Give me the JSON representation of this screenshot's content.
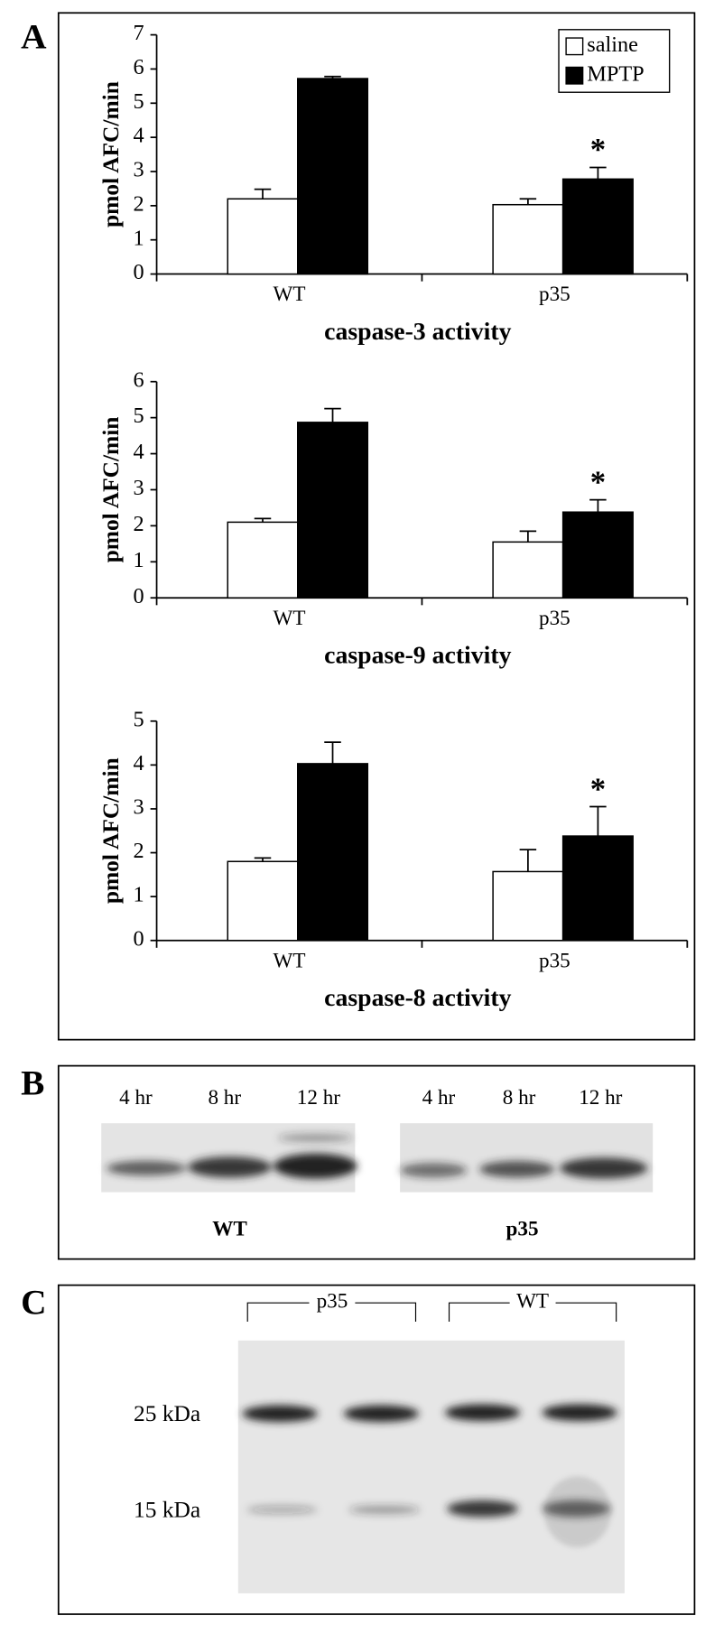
{
  "chart_data": [
    {
      "type": "bar",
      "title": "caspase-3 activity",
      "ylabel": "pmol AFC/min",
      "categories": [
        "WT",
        "p35"
      ],
      "series": [
        {
          "name": "saline",
          "color": "#ffffff",
          "values": [
            2.2,
            2.03
          ],
          "errors": [
            0.28,
            0.17
          ]
        },
        {
          "name": "MPTP",
          "color": "#000000",
          "values": [
            5.72,
            2.78
          ],
          "errors": [
            0.06,
            0.34
          ]
        }
      ],
      "annotation": "*",
      "ylim": [
        0,
        7
      ],
      "yticks": [
        0,
        1,
        2,
        3,
        4,
        5,
        6,
        7
      ],
      "legend": "upper right"
    },
    {
      "type": "bar",
      "title": "caspase-9 activity",
      "ylabel": "pmol AFC/min",
      "categories": [
        "WT",
        "p35"
      ],
      "series": [
        {
          "name": "saline",
          "color": "#ffffff",
          "values": [
            2.1,
            1.55
          ],
          "errors": [
            0.1,
            0.3
          ]
        },
        {
          "name": "MPTP",
          "color": "#000000",
          "values": [
            4.87,
            2.38
          ],
          "errors": [
            0.38,
            0.34
          ]
        }
      ],
      "annotation": "*",
      "ylim": [
        0,
        6
      ],
      "yticks": [
        0,
        1,
        2,
        3,
        4,
        5,
        6
      ]
    },
    {
      "type": "bar",
      "title": "caspase-8 activity",
      "ylabel": "pmol AFC/min",
      "categories": [
        "WT",
        "p35"
      ],
      "series": [
        {
          "name": "saline",
          "color": "#ffffff",
          "values": [
            1.8,
            1.57
          ],
          "errors": [
            0.08,
            0.5
          ]
        },
        {
          "name": "MPTP",
          "color": "#000000",
          "values": [
            4.03,
            2.38
          ],
          "errors": [
            0.49,
            0.67
          ]
        }
      ],
      "annotation": "*",
      "ylim": [
        0,
        5
      ],
      "yticks": [
        0,
        1,
        2,
        3,
        4,
        5
      ]
    }
  ],
  "panels": {
    "a": {
      "label": "A"
    },
    "b": {
      "label": "B",
      "lanes": [
        "4 hr",
        "8 hr",
        "12 hr",
        "4 hr",
        "8 hr",
        "12 hr"
      ],
      "groups": [
        "WT",
        "p35"
      ]
    },
    "c": {
      "label": "C",
      "groups": [
        "p35",
        "WT"
      ],
      "markers": [
        "25 kDa",
        "15 kDa"
      ]
    }
  }
}
